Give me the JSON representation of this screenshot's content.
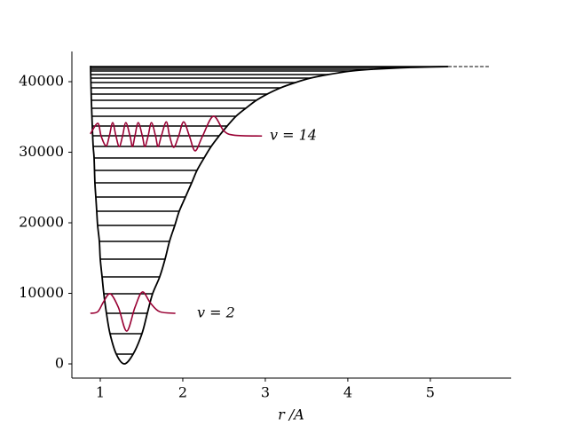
{
  "chart_data": {
    "type": "line",
    "xlabel": "r /A",
    "xlim": [
      0.656,
      5.98
    ],
    "ylim": [
      -2010,
      44280
    ],
    "xticks": [
      1,
      2,
      3,
      4,
      5
    ],
    "yticks": [
      0,
      10000,
      20000,
      30000,
      40000
    ],
    "levels": [
      1380,
      4280,
      7170,
      9940,
      12330,
      14840,
      17360,
      19620,
      21640,
      23650,
      25660,
      27420,
      29180,
      30820,
      32330,
      33710,
      35100,
      36230,
      37360,
      38240,
      39120,
      39880,
      40500,
      41010,
      41510,
      41760,
      42010,
      42140
    ],
    "levels_color": "#000000",
    "dissociation": {
      "value": 42140,
      "x": [
        5.215,
        5.73
      ]
    },
    "series": [
      {
        "color": "#000000",
        "x": [
          0.882,
          0.892,
          0.903,
          0.914,
          0.925,
          0.935,
          0.946,
          0.957,
          0.968,
          0.989,
          1.0,
          1.022,
          1.043,
          1.075,
          1.118,
          1.194,
          1.29,
          1.398,
          1.505,
          1.57,
          1.634,
          1.72,
          1.785,
          1.839,
          1.903,
          1.957,
          2.032,
          2.108,
          2.172,
          2.258,
          2.344,
          2.441,
          2.538,
          2.645,
          2.763,
          2.892,
          3.022,
          3.183,
          3.366,
          3.548,
          3.763,
          4.043,
          4.301,
          4.731,
          5.215
        ],
        "values": [
          42260,
          37360,
          33710,
          30820,
          29180,
          25660,
          23650,
          21640,
          19620,
          17360,
          14840,
          12330,
          9940,
          7170,
          4280,
          1380,
          0,
          1380,
          4280,
          7170,
          9940,
          12330,
          14840,
          17360,
          19620,
          21640,
          23650,
          25660,
          27420,
          29180,
          30820,
          32330,
          33710,
          35100,
          36230,
          37360,
          38240,
          39120,
          39880,
          40500,
          41010,
          41510,
          41760,
          42010,
          42140
        ]
      },
      {
        "name": "v = 2",
        "color": "#990033",
        "x": [
          0.88,
          0.97,
          1.04,
          1.12,
          1.22,
          1.32,
          1.42,
          1.51,
          1.61,
          1.72,
          1.91
        ],
        "values": [
          7170,
          7400,
          8800,
          9940,
          8000,
          4650,
          8000,
          10190,
          8600,
          7400,
          7170
        ]
      },
      {
        "name": "v = 14",
        "color": "#990033",
        "x": [
          0.88,
          0.97,
          1.01,
          1.07,
          1.11,
          1.15,
          1.19,
          1.23,
          1.27,
          1.31,
          1.36,
          1.39,
          1.42,
          1.46,
          1.51,
          1.54,
          1.58,
          1.62,
          1.67,
          1.7,
          1.74,
          1.8,
          1.84,
          1.89,
          1.95,
          2.01,
          2.08,
          2.15,
          2.24,
          2.37,
          2.5,
          2.63,
          2.96
        ],
        "values": [
          32600,
          34100,
          32300,
          30900,
          32300,
          34200,
          32300,
          30800,
          32300,
          34200,
          32300,
          30800,
          32300,
          34200,
          32300,
          30800,
          32300,
          34200,
          32300,
          30800,
          32300,
          34300,
          32300,
          30700,
          32300,
          34300,
          32300,
          30200,
          32300,
          35100,
          33000,
          32400,
          32300
        ]
      }
    ]
  }
}
